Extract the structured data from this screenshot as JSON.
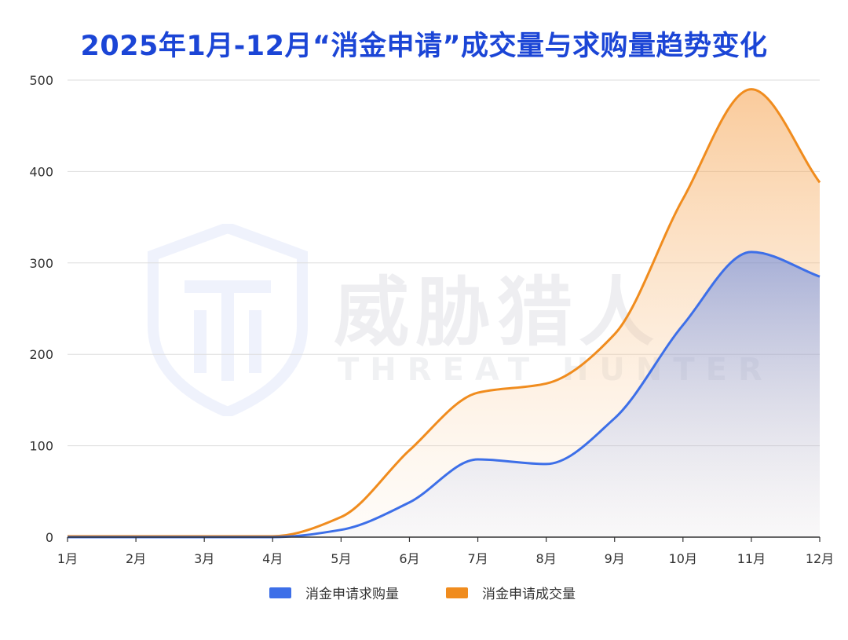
{
  "chart_data": {
    "type": "area",
    "title": "2025年1月-12月“消金申请”成交量与求购量趋势变化",
    "categories": [
      "1月",
      "2月",
      "3月",
      "4月",
      "5月",
      "6月",
      "7月",
      "8月",
      "9月",
      "10月",
      "11月",
      "12月"
    ],
    "y_ticks": [
      "0",
      "100",
      "200",
      "300",
      "400",
      "500"
    ],
    "ylim": [
      0,
      500
    ],
    "grid": true,
    "legend_position": "bottom",
    "series": [
      {
        "name": "消金申请求购量",
        "color": "#3d6fe8",
        "values": [
          0,
          0,
          0,
          0,
          8,
          38,
          85,
          80,
          130,
          232,
          312,
          285
        ]
      },
      {
        "name": "消金申请成交量",
        "color": "#f08c1e",
        "values": [
          1,
          1,
          1,
          1,
          22,
          95,
          158,
          168,
          222,
          370,
          490,
          388
        ]
      }
    ]
  },
  "watermark": {
    "text": "威胁猎人",
    "sub_text": "THREAT HUNTER"
  }
}
